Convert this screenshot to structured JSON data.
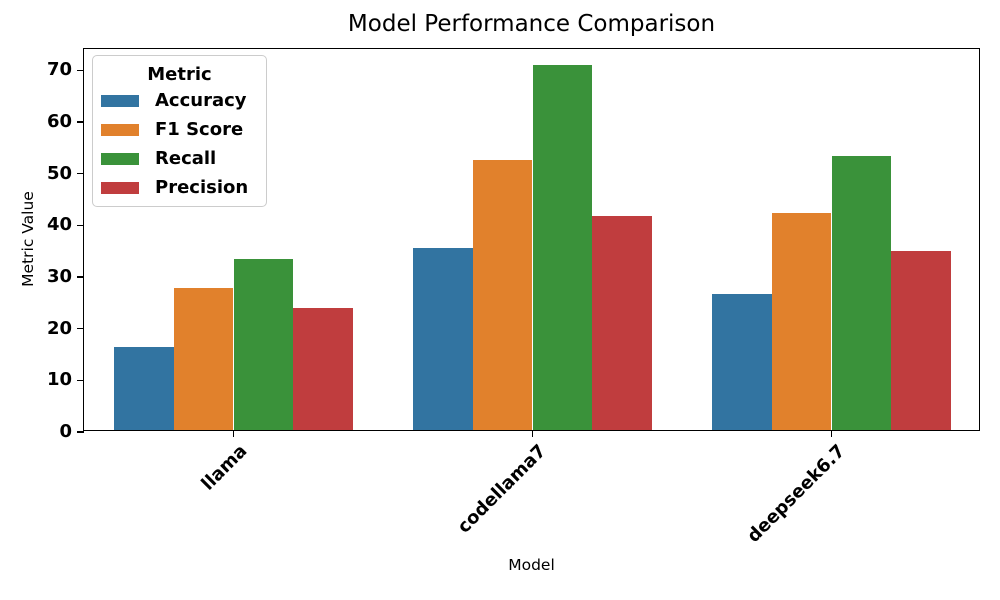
{
  "chart_data": {
    "type": "bar",
    "title": "Model Performance Comparison",
    "xlabel": "Model",
    "ylabel": "Metric Value",
    "categories": [
      "llama",
      "codellama7",
      "deepseek6.7"
    ],
    "series": [
      {
        "name": "Accuracy",
        "color": "#3274a1",
        "values": [
          16.0,
          35.2,
          26.3
        ]
      },
      {
        "name": "F1 Score",
        "color": "#e1812c",
        "values": [
          27.4,
          52.3,
          41.9
        ]
      },
      {
        "name": "Recall",
        "color": "#3a923a",
        "values": [
          33.1,
          70.6,
          53.0
        ]
      },
      {
        "name": "Precision",
        "color": "#c03d3e",
        "values": [
          23.7,
          41.5,
          34.7
        ]
      }
    ],
    "ylim": [
      0,
      74.1
    ],
    "yticks": [
      0,
      10,
      20,
      30,
      40,
      50,
      60,
      70
    ],
    "legend_title": "Metric",
    "legend_position": "upper left",
    "grid": false,
    "bar_group_width": 0.8,
    "x_tick_label_rotation": 45
  }
}
